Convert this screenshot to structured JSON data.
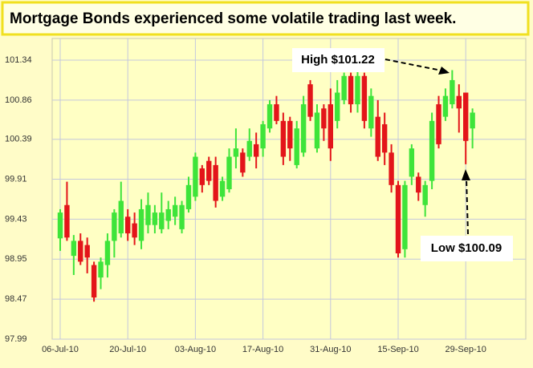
{
  "chart_data": {
    "type": "candlestick",
    "title": "Mortgage Bonds experienced some volatile trading last week.",
    "categories": [
      "06-Jul-10",
      null,
      null,
      null,
      null,
      null,
      null,
      null,
      null,
      null,
      "20-Jul-10",
      null,
      null,
      null,
      null,
      null,
      null,
      null,
      null,
      null,
      "03-Aug-10",
      null,
      null,
      null,
      null,
      null,
      null,
      null,
      null,
      null,
      "17-Aug-10",
      null,
      null,
      null,
      null,
      null,
      null,
      null,
      null,
      null,
      "31-Aug-10",
      null,
      null,
      null,
      null,
      null,
      null,
      null,
      null,
      null,
      "15-Sep-10",
      null,
      null,
      null,
      null,
      null,
      null,
      null,
      null,
      null,
      "29-Sep-10",
      null
    ],
    "open": [
      99.2,
      99.6,
      98.99,
      99.17,
      99.12,
      98.88,
      98.73,
      98.88,
      99.17,
      99.26,
      99.46,
      99.38,
      99.17,
      99.36,
      99.36,
      99.31,
      99.41,
      99.46,
      99.31,
      99.55,
      99.7,
      100.04,
      100.13,
      100.08,
      99.7,
      99.79,
      100.18,
      100.23,
      100.18,
      100.33,
      100.28,
      100.52,
      100.81,
      100.61,
      100.61,
      100.08,
      100.23,
      101.05,
      100.28,
      100.76,
      100.81,
      100.61,
      100.86,
      101.15,
      100.81,
      101.15,
      100.52,
      100.66,
      100.57,
      100.23,
      99.84,
      99.07,
      99.94,
      99.94,
      99.6,
      99.89,
      100.81,
      100.66,
      100.81,
      100.91,
      100.95,
      100.52
    ],
    "high": [
      99.55,
      99.88,
      99.24,
      99.26,
      99.21,
      98.92,
      98.97,
      99.26,
      99.55,
      99.88,
      99.55,
      99.51,
      99.67,
      99.75,
      99.6,
      99.75,
      99.65,
      99.7,
      99.65,
      99.94,
      100.23,
      100.08,
      100.18,
      100.18,
      99.94,
      100.28,
      100.52,
      100.28,
      100.52,
      100.47,
      100.61,
      100.86,
      100.91,
      100.71,
      100.66,
      100.61,
      100.91,
      101.1,
      100.81,
      100.81,
      101.0,
      101.1,
      101.19,
      101.19,
      101.24,
      101.19,
      101.0,
      100.86,
      100.71,
      100.33,
      99.89,
      99.89,
      100.33,
      99.99,
      99.89,
      100.71,
      100.91,
      101.0,
      101.22,
      101.05,
      100.95,
      100.76
    ],
    "low": [
      99.05,
      99.17,
      98.76,
      98.88,
      98.78,
      98.44,
      98.59,
      98.73,
      98.97,
      99.21,
      99.17,
      99.12,
      99.07,
      99.26,
      99.26,
      99.26,
      99.31,
      99.36,
      99.26,
      99.51,
      99.65,
      99.75,
      99.84,
      99.57,
      99.65,
      99.75,
      100.04,
      99.94,
      100.13,
      100.04,
      100.18,
      100.47,
      100.57,
      100.08,
      100.13,
      100.04,
      100.18,
      100.61,
      100.23,
      100.37,
      100.13,
      100.52,
      100.81,
      100.71,
      100.71,
      100.52,
      100.42,
      100.13,
      100.08,
      99.75,
      98.97,
      98.97,
      99.84,
      99.65,
      99.46,
      99.79,
      100.28,
      100.61,
      100.76,
      100.47,
      100.09,
      100.28
    ],
    "close": [
      99.51,
      99.21,
      99.17,
      98.92,
      98.97,
      98.49,
      98.92,
      99.17,
      99.51,
      99.65,
      99.26,
      99.21,
      99.55,
      99.6,
      99.51,
      99.51,
      99.55,
      99.6,
      99.6,
      99.84,
      100.18,
      99.84,
      99.89,
      99.65,
      99.89,
      100.18,
      100.28,
      99.99,
      100.37,
      100.18,
      100.57,
      100.81,
      100.61,
      100.18,
      100.28,
      100.52,
      100.81,
      100.66,
      100.71,
      100.52,
      100.28,
      100.95,
      101.15,
      100.81,
      101.15,
      100.61,
      100.91,
      100.18,
      100.23,
      99.84,
      99.02,
      99.84,
      100.28,
      99.75,
      99.84,
      100.61,
      100.33,
      100.91,
      101.1,
      100.76,
      100.37,
      100.71
    ],
    "up_color": "#3ee43a",
    "down_color": "#e3151a",
    "ylim": [
      97.99,
      101.6
    ],
    "yticks": [
      97.99,
      98.47,
      98.95,
      99.43,
      99.91,
      100.39,
      100.86,
      101.34
    ],
    "grid": true,
    "annotations": [
      "High $101.22",
      "Low $100.09"
    ]
  }
}
